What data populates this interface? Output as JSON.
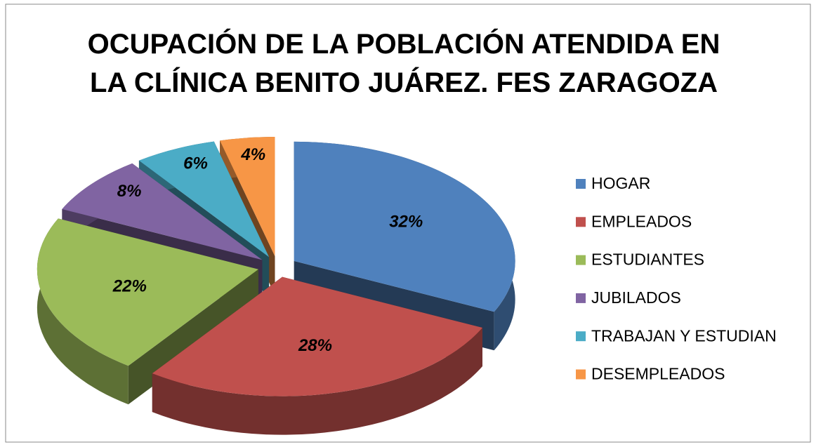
{
  "chart_data": {
    "type": "pie3d",
    "title": "OCUPACIÓN DE LA POBLACIÓN ATENDIDA EN LA CLÍNICA BENITO JUÁREZ. FES ZARAGOZA",
    "title_lines": [
      "OCUPACIÓN DE LA POBLACIÓN ATENDIDA EN",
      "LA CLÍNICA BENITO JUÁREZ. FES ZARAGOZA"
    ],
    "categories": [
      "HOGAR",
      "EMPLEADOS",
      "ESTUDIANTES",
      "JUBILADOS",
      "TRABAJAN Y ESTUDIAN",
      "DESEMPLEADOS"
    ],
    "values": [
      32,
      28,
      22,
      8,
      6,
      4
    ],
    "value_labels": [
      "32%",
      "28%",
      "22%",
      "8%",
      "6%",
      "4%"
    ],
    "colors": [
      "#4f81bd",
      "#c0504d",
      "#9bbb59",
      "#8064a2",
      "#4bacc6",
      "#f79646"
    ],
    "legend": "right"
  }
}
